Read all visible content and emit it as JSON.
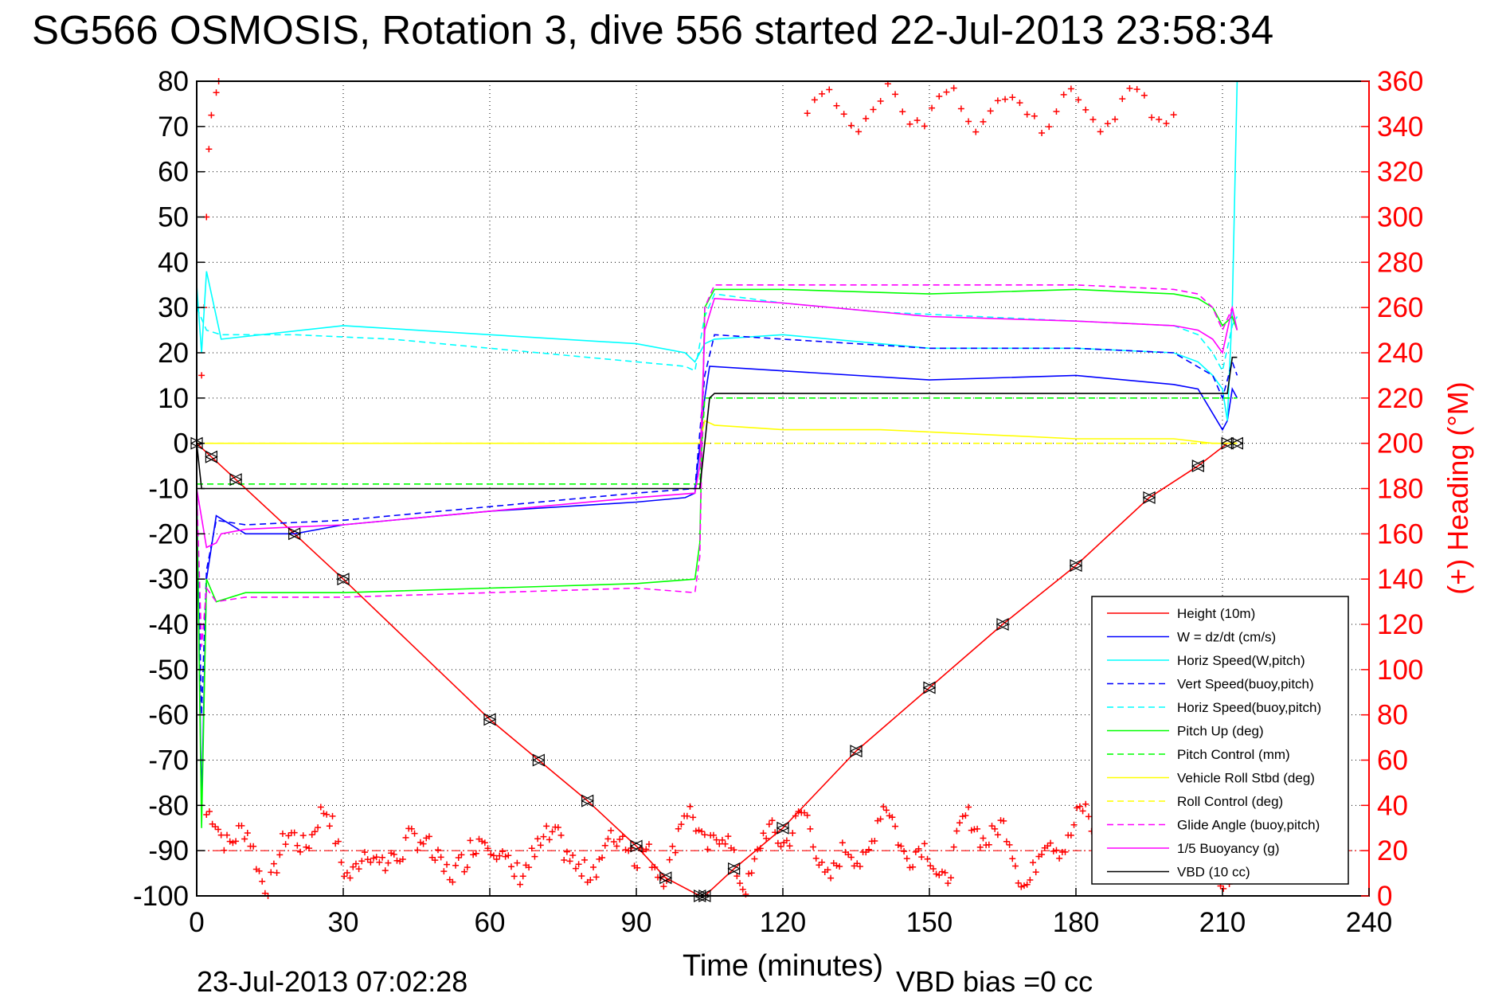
{
  "chart_data": {
    "type": "line",
    "title": "SG566 OSMOSIS, Rotation 3, dive 556 started 22-Jul-2013 23:58:34",
    "xlabel": "Time (minutes)",
    "ylabel_left": "",
    "ylabel_right": "(+) Heading (°M)",
    "footer_left": "23-Jul-2013 07:02:28",
    "footer_right": "VBD bias =0 cc",
    "xlim": [
      0,
      240
    ],
    "ylim_left": [
      -100,
      80
    ],
    "ylim_right": [
      0,
      360
    ],
    "x_ticks": [
      "0",
      "30",
      "60",
      "90",
      "120",
      "150",
      "180",
      "210",
      "240"
    ],
    "y_ticks_left": [
      "80",
      "70",
      "60",
      "50",
      "40",
      "30",
      "20",
      "10",
      "0",
      "-10",
      "-20",
      "-30",
      "-40",
      "-50",
      "-60",
      "-70",
      "-80",
      "-90",
      "-100"
    ],
    "y_ticks_right": [
      "360",
      "340",
      "320",
      "300",
      "280",
      "260",
      "240",
      "220",
      "200",
      "180",
      "160",
      "140",
      "120",
      "100",
      "80",
      "60",
      "40",
      "20",
      "0"
    ],
    "grid": true,
    "legend_position": "bottom-right",
    "heading_color": "#ff0000",
    "reference_line_y": -90,
    "series": [
      {
        "name": "Height (10m)",
        "color": "#ff0000",
        "dash": "solid",
        "x": [
          0,
          3,
          8,
          20,
          30,
          60,
          70,
          80,
          90,
          96,
          103,
          104,
          110,
          120,
          135,
          150,
          165,
          180,
          195,
          205,
          211,
          213
        ],
        "y": [
          0,
          -3,
          -8,
          -20,
          -30,
          -61,
          -70,
          -79,
          -89,
          -96,
          -100,
          -100,
          -94,
          -85,
          -68,
          -54,
          -40,
          -27,
          -12,
          -5,
          0,
          0
        ]
      },
      {
        "name": "W = dz/dt (cm/s)",
        "color": "#0000ff",
        "dash": "solid",
        "x": [
          0,
          1,
          2,
          4,
          10,
          20,
          30,
          60,
          90,
          100,
          102,
          104,
          105,
          120,
          150,
          180,
          200,
          205,
          210,
          211,
          212,
          213
        ],
        "y": [
          -10,
          -80,
          -30,
          -16,
          -20,
          -20,
          -18,
          -15,
          -13,
          -12,
          -11,
          10,
          17,
          16,
          14,
          15,
          13,
          12,
          3,
          5,
          12,
          10
        ]
      },
      {
        "name": "Horiz Speed(W,pitch)",
        "color": "#00ffff",
        "dash": "solid",
        "x": [
          0,
          1,
          2,
          5,
          30,
          60,
          90,
          100,
          102,
          104,
          106,
          120,
          150,
          180,
          200,
          205,
          208,
          210,
          211,
          212,
          213
        ],
        "y": [
          35,
          20,
          38,
          23,
          26,
          24,
          22,
          20,
          18,
          22,
          23,
          24,
          21,
          21,
          20,
          18,
          15,
          12,
          5,
          30,
          80
        ]
      },
      {
        "name": "Vert Speed(buoy,pitch)",
        "color": "#0000ff",
        "dash": "dashed",
        "x": [
          0,
          1,
          2,
          4,
          10,
          30,
          60,
          90,
          102,
          104,
          106,
          120,
          150,
          180,
          200,
          208,
          210,
          212,
          213
        ],
        "y": [
          -10,
          -60,
          -28,
          -17,
          -18,
          -17,
          -14,
          -11,
          -10,
          15,
          24,
          23,
          21,
          21,
          20,
          15,
          10,
          18,
          15
        ]
      },
      {
        "name": "Horiz Speed(buoy,pitch)",
        "color": "#00ffff",
        "dash": "dashed",
        "x": [
          0,
          2,
          5,
          20,
          40,
          60,
          80,
          100,
          102,
          104,
          106,
          120,
          140,
          160,
          180,
          200,
          205,
          208,
          210,
          212,
          213
        ],
        "y": [
          30,
          25,
          24,
          24,
          23,
          21,
          19,
          17,
          16,
          28,
          33,
          31,
          29,
          28,
          27,
          26,
          24,
          20,
          16,
          26,
          28
        ]
      },
      {
        "name": "Pitch Up (deg)",
        "color": "#00ff00",
        "dash": "solid",
        "x": [
          0,
          1,
          2,
          4,
          10,
          30,
          60,
          90,
          102,
          103,
          104,
          106,
          120,
          150,
          180,
          200,
          205,
          208,
          210,
          212,
          213
        ],
        "y": [
          -10,
          -85,
          -30,
          -35,
          -33,
          -33,
          -32,
          -31,
          -30,
          -22,
          30,
          34,
          34,
          33,
          34,
          33,
          32,
          30,
          26,
          28,
          25
        ]
      },
      {
        "name": "Pitch Control (mm)",
        "color": "#00ff00",
        "dash": "dashed",
        "x": [
          0,
          2,
          4,
          103,
          104,
          106,
          120,
          150,
          180,
          205,
          208,
          210,
          212,
          213
        ],
        "y": [
          -9,
          -9,
          -9,
          -9,
          10,
          10,
          10,
          10,
          10,
          10,
          10,
          10,
          10,
          10
        ]
      },
      {
        "name": "Vehicle Roll Stbd (deg)",
        "color": "#ffff00",
        "dash": "solid",
        "x": [
          0,
          5,
          20,
          40,
          60,
          80,
          90,
          100,
          103,
          104,
          106,
          120,
          140,
          160,
          180,
          200,
          208,
          210,
          212,
          213
        ],
        "y": [
          0,
          0,
          0,
          0,
          0,
          0,
          0,
          0,
          0,
          5,
          4,
          3,
          3,
          2,
          1,
          1,
          0,
          0,
          0,
          0
        ]
      },
      {
        "name": "Roll Control (deg)",
        "color": "#ffff00",
        "dash": "dashed",
        "x": [
          0,
          30,
          60,
          90,
          103,
          104,
          120,
          150,
          180,
          210,
          213
        ],
        "y": [
          0,
          0,
          0,
          0,
          0,
          0,
          0,
          0,
          0,
          0,
          0
        ]
      },
      {
        "name": "Glide Angle (buoy,pitch)",
        "color": "#ff00ff",
        "dash": "dashed",
        "x": [
          0,
          1,
          2,
          4,
          10,
          30,
          60,
          90,
          102,
          103,
          104,
          106,
          120,
          150,
          180,
          200,
          205,
          208,
          210,
          212,
          213
        ],
        "y": [
          -10,
          -45,
          -32,
          -35,
          -34,
          -34,
          -33,
          -32,
          -33,
          -25,
          30,
          35,
          35,
          35,
          35,
          34,
          33,
          30,
          25,
          30,
          25
        ]
      },
      {
        "name": "1/5 Buoyancy (g)",
        "color": "#ff00ff",
        "dash": "solid",
        "x": [
          0,
          2,
          4,
          5,
          10,
          30,
          60,
          90,
          102,
          103,
          104,
          106,
          120,
          150,
          180,
          200,
          205,
          208,
          210,
          212,
          213
        ],
        "y": [
          -10,
          -23,
          -22,
          -20,
          -19,
          -18,
          -15,
          -12,
          -11,
          -5,
          25,
          32,
          31,
          28,
          27,
          26,
          25,
          23,
          20,
          30,
          25
        ]
      },
      {
        "name": "VBD (10 cc)",
        "color": "#000000",
        "dash": "solid",
        "x": [
          0,
          1,
          3,
          103,
          104,
          105,
          106,
          150,
          211,
          212,
          213
        ],
        "y": [
          0,
          -10,
          -10,
          -10,
          0,
          10,
          11,
          11,
          11,
          19,
          19
        ]
      }
    ]
  }
}
